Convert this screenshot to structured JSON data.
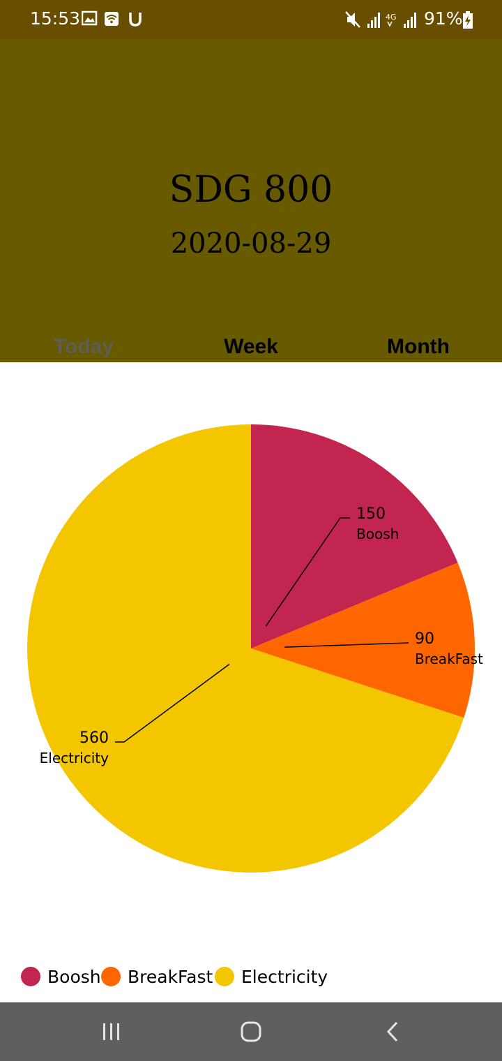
{
  "status_bar": {
    "time": "15:53",
    "battery": "91%",
    "left_icons": [
      "image-icon",
      "wifi-call-icon",
      "u-icon"
    ],
    "right_icons": [
      "mute-icon",
      "signal-icon",
      "4g-icon",
      "signal-icon"
    ]
  },
  "header": {
    "title": "SDG 800",
    "date": "2020-08-29",
    "background": "#675a00"
  },
  "tabs": [
    {
      "label": "Today",
      "active": true
    },
    {
      "label": "Week",
      "active": false
    },
    {
      "label": "Month",
      "active": false
    }
  ],
  "chart_data": {
    "type": "pie",
    "slices": [
      {
        "label": "Boosh",
        "value": 150,
        "color": "#c12550"
      },
      {
        "label": "BreakFast",
        "value": 90,
        "color": "#ff6600"
      },
      {
        "label": "Electricity",
        "value": 560,
        "color": "#f4c600"
      }
    ],
    "legend": "bottom-left"
  },
  "nav": {
    "recent_icon": "recent-apps-icon",
    "home_icon": "home-icon",
    "back_icon": "back-icon"
  }
}
